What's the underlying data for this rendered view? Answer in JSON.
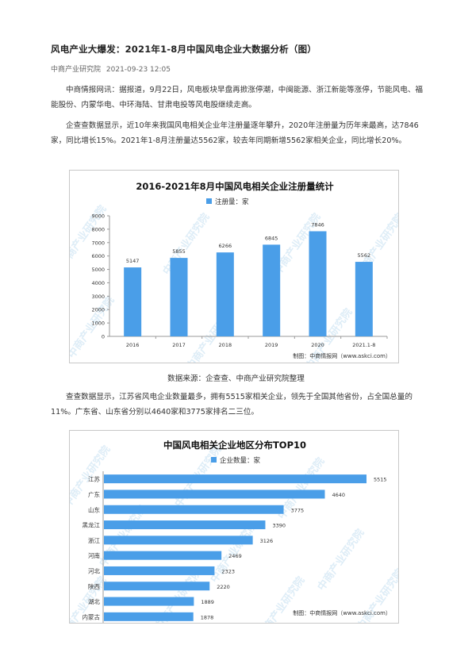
{
  "article": {
    "title": "风电产业大爆发：2021年1-8月中国风电企业大数据分析（图）",
    "source": "中商产业研究院",
    "date": "2021-09-23 12:05",
    "para1": "中商情报网讯：据报道，9月22日，风电板块早盘再掀涨停潮，中闽能源、浙江新能等涨停，节能风电、福能股份、内蒙华电、中环海陆、甘肃电投等风电股继续走高。",
    "para2": "企查查数据显示，近10年来我国风电相关企业年注册量逐年攀升，2020年注册量为历年来最高，达7846家，同比增长15%。2021年1-8月注册量达5562家，较去年同期新增5562家相关企业，同比增长20%。",
    "caption1": "数据来源：企查查、中商产业研究院整理",
    "para3": "查查数据显示，江苏省风电企业数量最多，拥有5515家相关企业，领先于全国其他省份，占全国总量的11%。广东省、山东省分别以4640家和3775家排名二三位。"
  },
  "chart_data": [
    {
      "type": "bar",
      "title": "2016-2021年8月中国风电相关企业注册量统计",
      "legend": "注册量：家",
      "categories": [
        "2016",
        "2017",
        "2018",
        "2019",
        "2020",
        "2021.1-8"
      ],
      "values": [
        5147,
        5855,
        6266,
        6845,
        7846,
        5562
      ],
      "ylim": [
        0,
        9000
      ],
      "yticks": [
        0,
        1000,
        2000,
        3000,
        4000,
        5000,
        6000,
        7000,
        8000,
        9000
      ],
      "credit": "制图：中商情报网（www.askci.com）",
      "watermark": "中商产业研究院",
      "color": "#4a9ee8"
    },
    {
      "type": "bar",
      "orientation": "horizontal",
      "title": "中国风电相关企业地区分布TOP10",
      "legend": "企业数量：家",
      "categories": [
        "江苏",
        "广东",
        "山东",
        "黑龙江",
        "浙江",
        "河南",
        "河北",
        "陕西",
        "湖北",
        "内蒙古"
      ],
      "values": [
        5515,
        4640,
        3775,
        3390,
        3126,
        2469,
        2323,
        2220,
        1889,
        1878
      ],
      "credit": "制图：中商情报网（www.askci.com）",
      "watermark": "中商产业研究院",
      "color": "#4a9ee8"
    }
  ]
}
